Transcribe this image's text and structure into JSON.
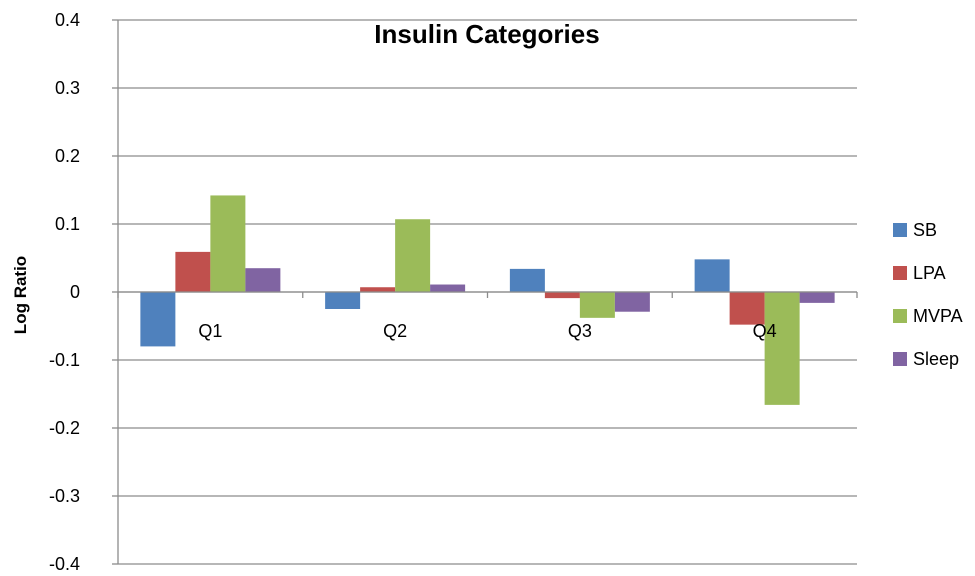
{
  "chart_data": {
    "type": "bar",
    "title": "Insulin Categories",
    "xlabel": "",
    "ylabel": "Log Ratio",
    "categories": [
      "Q1",
      "Q2",
      "Q3",
      "Q4"
    ],
    "series": [
      {
        "name": "SB",
        "color": "#4f81bd",
        "values": [
          -0.08,
          -0.025,
          0.034,
          0.048
        ]
      },
      {
        "name": "LPA",
        "color": "#c0504d",
        "values": [
          0.059,
          0.007,
          -0.009,
          -0.048
        ]
      },
      {
        "name": "MVPA",
        "color": "#9bbb59",
        "values": [
          0.142,
          0.107,
          -0.038,
          -0.166
        ]
      },
      {
        "name": "Sleep",
        "color": "#8064a2",
        "values": [
          0.035,
          0.011,
          -0.029,
          -0.016
        ]
      }
    ],
    "ylim": [
      -0.4,
      0.4
    ],
    "yticks": [
      -0.4,
      -0.3,
      -0.2,
      -0.1,
      0,
      0.1,
      0.2,
      0.3,
      0.4
    ],
    "ytick_labels": [
      "-0.4",
      "-0.3",
      "-0.2",
      "-0.1",
      "0",
      "0.1",
      "0.2",
      "0.3",
      "0.4"
    ],
    "grid": true,
    "legend": "right"
  }
}
